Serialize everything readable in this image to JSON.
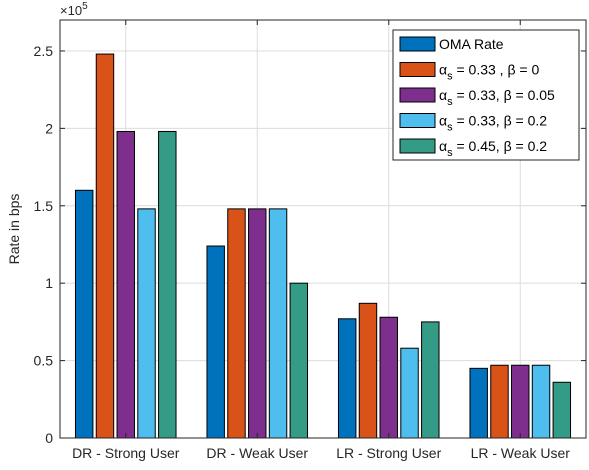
{
  "chart_data": {
    "type": "bar",
    "title": "",
    "xlabel": "",
    "ylabel": "Rate in bps",
    "exponent_base": "×10",
    "exponent_power": "5",
    "categories": [
      "DR - Strong User",
      "DR - Weak User",
      "LR - Strong User",
      "LR - Weak User"
    ],
    "ylim": [
      0,
      2.7
    ],
    "yticks": [
      "0",
      "0.5",
      "1",
      "1.5",
      "2",
      "2.5"
    ],
    "ytick_values": [
      0,
      0.5,
      1,
      1.5,
      2,
      2.5
    ],
    "grid": true,
    "legend_position": "top-right",
    "series": [
      {
        "name": "OMA Rate",
        "legend": {
          "pre": "OMA Rate",
          "sub": "",
          "post": ""
        },
        "color": "#0072BD",
        "values": [
          1.6,
          1.24,
          0.77,
          0.45
        ]
      },
      {
        "name": "αs = 0.33 , β = 0",
        "legend": {
          "pre": "α",
          "sub": "s",
          "post": " = 0.33 , β = 0"
        },
        "color": "#D95319",
        "values": [
          2.48,
          1.48,
          0.87,
          0.47
        ]
      },
      {
        "name": "αs = 0.33, β = 0.05",
        "legend": {
          "pre": "α",
          "sub": "s",
          "post": " = 0.33, β = 0.05"
        },
        "color": "#7E2F8E",
        "values": [
          1.98,
          1.48,
          0.78,
          0.47
        ]
      },
      {
        "name": "αs = 0.33, β = 0.2",
        "legend": {
          "pre": "α",
          "sub": "s",
          "post": " = 0.33, β = 0.2"
        },
        "color": "#4DBEEE",
        "values": [
          1.48,
          1.48,
          0.58,
          0.47
        ]
      },
      {
        "name": "αs = 0.45, β = 0.2",
        "legend": {
          "pre": "α",
          "sub": "s",
          "post": " = 0.45, β = 0.2"
        },
        "color": "#339B86",
        "values": [
          1.98,
          1.0,
          0.75,
          0.36
        ]
      }
    ]
  }
}
